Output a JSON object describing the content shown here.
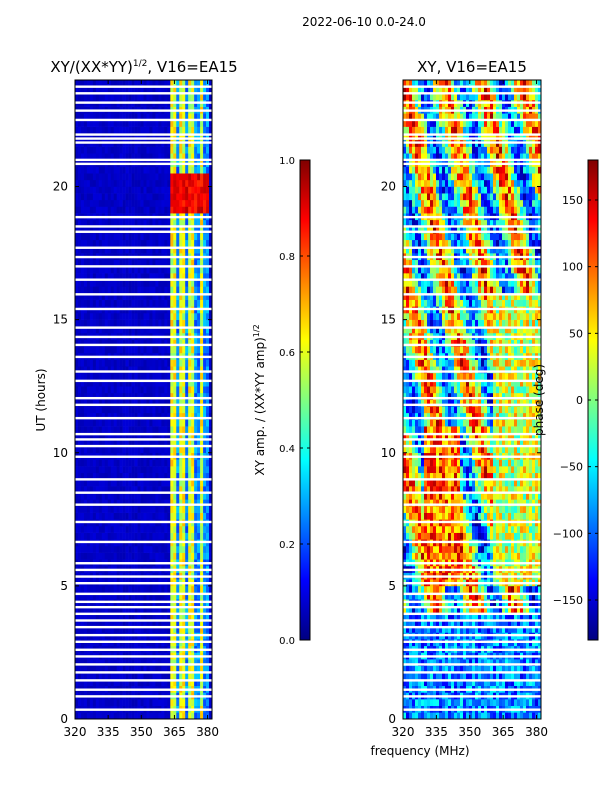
{
  "figure_title": "2022-06-10 0.0-24.0",
  "shared_xlabel": "frequency (MHz)",
  "colors": {
    "jet": [
      "#000080",
      "#0000ff",
      "#0080ff",
      "#00ffff",
      "#80ff80",
      "#ffff00",
      "#ff8000",
      "#ff0000",
      "#800000"
    ],
    "gap": "#ffffff",
    "frame": "#000000"
  },
  "chart_data": [
    {
      "type": "heatmap",
      "title_main": "XY/(XX*YY)",
      "title_sup": "1/2",
      "title_suffix": ", V16=EA15",
      "xlabel": "",
      "ylabel": "UT (hours)",
      "xlim": [
        320,
        382
      ],
      "ylim": [
        0,
        24
      ],
      "xticks": [
        "320",
        "335",
        "350",
        "365",
        "380"
      ],
      "xtick_values": [
        320,
        335,
        350,
        365,
        380
      ],
      "yticks": [
        "0",
        "5",
        "10",
        "15",
        "20"
      ],
      "ytick_values": [
        0,
        5,
        10,
        15,
        20
      ],
      "colorbar": {
        "label_main": "XY amp. / (XX*YY amp)",
        "label_sup": "1/2",
        "range": [
          0.0,
          1.0
        ],
        "ticks": [
          "0.0",
          "0.2",
          "0.4",
          "0.6",
          "0.8",
          "1.0"
        ],
        "tick_values": [
          0.0,
          0.2,
          0.4,
          0.6,
          0.8,
          1.0
        ]
      },
      "description_values": {
        "background_level": 0.05,
        "high_band_MHz": [
          363,
          380
        ],
        "high_band_level": 0.5,
        "peak_hours": [
          19,
          20.5
        ],
        "peak_level": 0.95
      }
    },
    {
      "type": "heatmap",
      "title_main": "XY, V16=EA15",
      "title_sup": "",
      "title_suffix": "",
      "xlabel": "frequency (MHz)",
      "ylabel": "",
      "xlim": [
        320,
        382
      ],
      "ylim": [
        0,
        24
      ],
      "xticks": [
        "320",
        "335",
        "350",
        "365",
        "380"
      ],
      "xtick_values": [
        320,
        335,
        350,
        365,
        380
      ],
      "yticks": [
        "0",
        "5",
        "10",
        "15",
        "20"
      ],
      "ytick_values": [
        0,
        5,
        10,
        15,
        20
      ],
      "colorbar": {
        "label_main": "phase (deg)",
        "label_sup": "",
        "range": [
          -180,
          180
        ],
        "ticks": [
          "−150",
          "−100",
          "−50",
          "0",
          "50",
          "100",
          "150"
        ],
        "tick_values": [
          -150,
          -100,
          -50,
          0,
          50,
          100,
          150
        ]
      },
      "description_values": {
        "phase_range_deg": [
          -180,
          180
        ]
      }
    }
  ],
  "gap_hours": [
    0.35,
    0.85,
    1.1,
    1.45,
    1.75,
    2.05,
    2.35,
    2.6,
    2.9,
    3.15,
    3.45,
    3.7,
    3.95,
    4.2,
    4.4,
    4.7,
    5.1,
    5.35,
    5.6,
    5.85,
    6.65,
    7.4,
    8.05,
    8.5,
    9.0,
    9.85,
    10.25,
    10.5,
    10.7,
    11.3,
    11.8,
    12.05,
    12.7,
    13.05,
    13.6,
    14.05,
    14.35,
    14.7,
    15.4,
    15.95,
    16.5,
    17.0,
    17.35,
    17.7,
    18.3,
    18.5,
    18.85,
    20.85,
    21.0,
    21.65,
    21.8,
    21.95,
    22.5,
    22.85,
    23.15,
    23.5,
    23.75
  ]
}
